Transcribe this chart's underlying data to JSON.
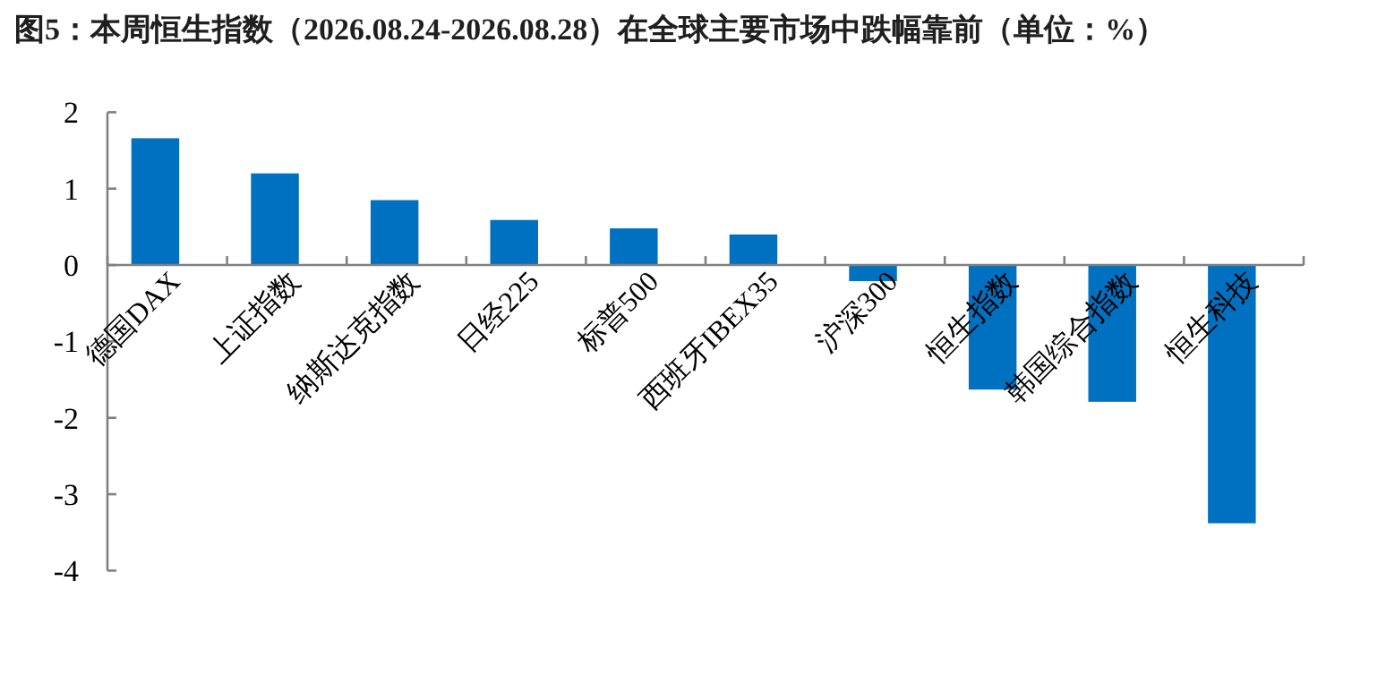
{
  "chart_data": {
    "type": "bar",
    "title": "图5：本周恒生指数（2026.08.24-2026.08.28）在全球主要市场中跌幅靠前（单位：%）",
    "categories": [
      "德国DAX",
      "上证指数",
      "纳斯达克指数",
      "日经225",
      "标普500",
      "西班牙IBEX35",
      "沪深300",
      "恒生指数",
      "韩国综合指数",
      "恒生科技"
    ],
    "values": [
      1.66,
      1.2,
      0.85,
      0.59,
      0.48,
      0.4,
      -0.21,
      -1.63,
      -1.79,
      -3.38
    ],
    "color": "#0070c0",
    "ylim": [
      -4,
      2
    ],
    "yticks": [
      -4,
      -3,
      -2,
      -1,
      0,
      1,
      2
    ],
    "grid": false
  }
}
